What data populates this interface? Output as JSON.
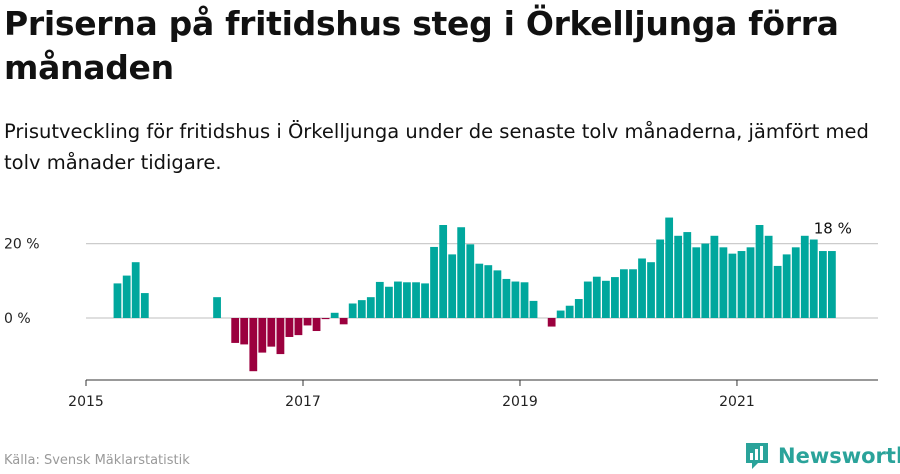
{
  "title": "Priserna på fritidshus steg i Örkelljunga förra månaden",
  "subtitle": "Prisutveckling för fritidshus i Örkelljunga under de senaste tolv månaderna, jämfört med tolv månader tidigare.",
  "source": "Källa: Svensk Mäklarstatistik",
  "brand": "Newsworthy",
  "colors": {
    "positive": "#00a79d",
    "negative": "#9b003e",
    "grid": "#cccccc",
    "brand": "#2aa39a"
  },
  "chart_data": {
    "type": "bar",
    "ylim": [
      -17,
      29
    ],
    "yticks": [
      0,
      20
    ],
    "ytick_labels": [
      "0 %",
      "20 %"
    ],
    "xticks": [
      2015,
      2017,
      2019,
      2021
    ],
    "xlim": [
      2015.0,
      2022.3
    ],
    "last_value_label": "18 %",
    "x": [
      2015.29,
      2015.375,
      2015.458,
      2015.542,
      2016.208,
      2016.375,
      2016.458,
      2016.542,
      2016.625,
      2016.708,
      2016.792,
      2016.875,
      2016.958,
      2017.042,
      2017.125,
      2017.208,
      2017.292,
      2017.375,
      2017.458,
      2017.542,
      2017.625,
      2017.708,
      2017.792,
      2017.875,
      2017.958,
      2018.042,
      2018.125,
      2018.208,
      2018.292,
      2018.375,
      2018.458,
      2018.542,
      2018.625,
      2018.708,
      2018.792,
      2018.875,
      2018.958,
      2019.042,
      2019.125,
      2019.292,
      2019.375,
      2019.458,
      2019.542,
      2019.625,
      2019.708,
      2019.792,
      2019.875,
      2019.958,
      2020.042,
      2020.125,
      2020.208,
      2020.292,
      2020.375,
      2020.458,
      2020.542,
      2020.625,
      2020.708,
      2020.792,
      2020.875,
      2020.958,
      2021.042,
      2021.125,
      2021.208,
      2021.292,
      2021.375,
      2021.458,
      2021.542,
      2021.625,
      2021.708,
      2021.792,
      2021.875
    ],
    "values": [
      9.3,
      11.4,
      15,
      6.7,
      5.6,
      -6.7,
      -7.1,
      -14.3,
      -9.3,
      -7.7,
      -9.7,
      -5.1,
      -4.6,
      -2,
      -3.5,
      -0.3,
      1.4,
      -1.7,
      3.9,
      4.8,
      5.6,
      9.7,
      8.4,
      9.8,
      9.6,
      9.6,
      9.3,
      19.1,
      25,
      17.1,
      24.4,
      19.8,
      14.6,
      14.2,
      12.8,
      10.5,
      9.8,
      9.6,
      4.6,
      -2.3,
      2,
      3.3,
      5.1,
      9.8,
      11.1,
      10,
      11,
      13.1,
      13.1,
      16,
      15,
      21.1,
      27,
      22.1,
      23.1,
      19,
      20,
      22.1,
      19,
      17.3,
      18,
      19,
      25,
      22.1,
      14,
      17.1,
      19,
      22.1,
      21.1,
      18,
      18
    ]
  }
}
